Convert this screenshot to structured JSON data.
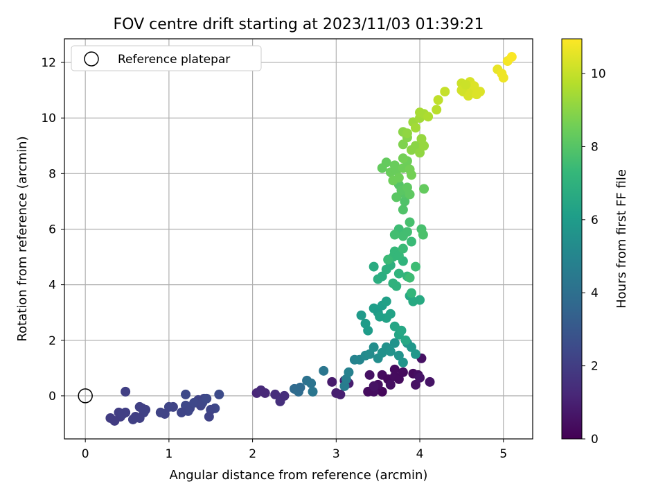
{
  "chart_data": {
    "type": "scatter",
    "title": "FOV centre drift starting at 2023/11/03 01:39:21",
    "xlabel": "Angular distance from reference (arcmin)",
    "ylabel": "Rotation from reference (arcmin)",
    "xlim": [
      -0.25,
      5.35
    ],
    "ylim": [
      -1.55,
      12.85
    ],
    "xticks": [
      0,
      1,
      2,
      3,
      4,
      5
    ],
    "yticks": [
      0,
      2,
      4,
      6,
      8,
      10,
      12
    ],
    "grid": true,
    "legend": {
      "placement": "top-left",
      "entries": [
        "Reference platepar"
      ]
    },
    "reference_point": {
      "x": 0,
      "y": 0
    },
    "colorbar": {
      "label": "Hours from first FF file",
      "colormap": "viridis",
      "range": [
        0,
        10.95
      ],
      "ticks": [
        0,
        2,
        4,
        6,
        8,
        10
      ]
    },
    "colors": {
      "viridis": [
        "#440154",
        "#482878",
        "#3e4989",
        "#31688e",
        "#26828e",
        "#1f9e89",
        "#35b779",
        "#6ece58",
        "#b5de2b",
        "#fde725"
      ]
    },
    "points": [
      [
        3.55,
        0.15,
        0.2
      ],
      [
        3.55,
        0.75,
        0.3
      ],
      [
        3.62,
        0.6,
        0.25
      ],
      [
        3.7,
        0.7,
        0.35
      ],
      [
        3.75,
        0.6,
        0.3
      ],
      [
        3.7,
        0.95,
        0.3
      ],
      [
        3.8,
        0.85,
        0.3
      ],
      [
        3.45,
        0.15,
        0.4
      ],
      [
        3.5,
        0.4,
        0.4
      ],
      [
        3.38,
        0.15,
        0.35
      ],
      [
        3.4,
        0.75,
        0.5
      ],
      [
        3.92,
        0.8,
        0.3
      ],
      [
        3.98,
        0.75,
        0.45
      ],
      [
        4.02,
        1.35,
        0.5
      ],
      [
        4.12,
        0.5,
        0.6
      ],
      [
        3.95,
        0.4,
        0.5
      ],
      [
        4.0,
        0.65,
        0.6
      ],
      [
        3.65,
        0.4,
        0.45
      ],
      [
        3.45,
        0.35,
        0.55
      ],
      [
        2.95,
        0.5,
        0.8
      ],
      [
        3.0,
        0.1,
        0.9
      ],
      [
        3.1,
        0.55,
        0.95
      ],
      [
        3.15,
        0.45,
        0.9
      ],
      [
        3.05,
        0.05,
        0.95
      ],
      [
        2.05,
        0.1,
        1.2
      ],
      [
        2.1,
        0.2,
        1.3
      ],
      [
        2.15,
        0.1,
        1.25
      ],
      [
        2.27,
        0.05,
        1.4
      ],
      [
        2.33,
        -0.2,
        1.5
      ],
      [
        2.38,
        0.0,
        1.45
      ],
      [
        1.6,
        0.05,
        2.5
      ],
      [
        1.55,
        -0.45,
        2.4
      ],
      [
        1.5,
        -0.5,
        2.3
      ],
      [
        1.48,
        -0.75,
        2.2
      ],
      [
        1.42,
        -0.1,
        2.3
      ],
      [
        1.38,
        -0.35,
        2.25
      ],
      [
        1.35,
        -0.15,
        2.2
      ],
      [
        1.25,
        -0.45,
        2.3
      ],
      [
        1.2,
        -0.35,
        2.4
      ],
      [
        1.23,
        -0.55,
        2.35
      ],
      [
        1.15,
        -0.6,
        2.3
      ],
      [
        1.05,
        -0.4,
        2.25
      ],
      [
        1.0,
        -0.4,
        2.3
      ],
      [
        0.95,
        -0.65,
        2.2
      ],
      [
        0.9,
        -0.6,
        2.25
      ],
      [
        0.72,
        -0.5,
        2.1
      ],
      [
        0.68,
        -0.45,
        2.15
      ],
      [
        0.65,
        -0.4,
        2.1
      ],
      [
        0.6,
        -0.75,
        2.05
      ],
      [
        0.57,
        -0.85,
        2.1
      ],
      [
        0.7,
        -0.6,
        2.15
      ],
      [
        0.65,
        -0.8,
        2.1
      ],
      [
        0.48,
        -0.6,
        2.05
      ],
      [
        0.42,
        -0.75,
        2.0
      ],
      [
        0.4,
        -0.6,
        2.0
      ],
      [
        0.35,
        -0.9,
        1.95
      ],
      [
        0.3,
        -0.8,
        1.95
      ],
      [
        0.45,
        -0.65,
        2.05
      ],
      [
        0.48,
        0.15,
        2.05
      ],
      [
        1.2,
        0.05,
        2.45
      ],
      [
        1.3,
        -0.25,
        2.4
      ],
      [
        1.4,
        -0.25,
        2.35
      ],
      [
        1.45,
        -0.1,
        2.45
      ],
      [
        2.5,
        0.25,
        3.8
      ],
      [
        2.55,
        0.15,
        3.9
      ],
      [
        2.57,
        0.3,
        3.8
      ],
      [
        2.65,
        0.55,
        4.1
      ],
      [
        2.7,
        0.45,
        4.2
      ],
      [
        2.72,
        0.15,
        4.3
      ],
      [
        2.85,
        0.9,
        4.3
      ],
      [
        3.1,
        0.35,
        4.6
      ],
      [
        3.12,
        0.6,
        4.7
      ],
      [
        3.15,
        0.85,
        4.8
      ],
      [
        3.22,
        1.3,
        4.9
      ],
      [
        3.28,
        1.3,
        5.0
      ],
      [
        3.35,
        1.45,
        5.2
      ],
      [
        3.4,
        1.5,
        5.3
      ],
      [
        3.45,
        1.75,
        5.4
      ],
      [
        3.5,
        1.35,
        5.4
      ],
      [
        3.55,
        1.55,
        5.5
      ],
      [
        3.6,
        1.75,
        5.5
      ],
      [
        3.65,
        1.6,
        5.6
      ],
      [
        3.7,
        1.9,
        5.6
      ],
      [
        3.75,
        1.45,
        5.6
      ],
      [
        3.8,
        1.2,
        5.7
      ],
      [
        3.85,
        1.9,
        5.7
      ],
      [
        3.9,
        1.75,
        5.8
      ],
      [
        3.95,
        1.5,
        5.8
      ],
      [
        3.3,
        2.9,
        5.9
      ],
      [
        3.35,
        2.6,
        6.0
      ],
      [
        3.38,
        2.35,
        6.0
      ],
      [
        3.45,
        3.15,
        6.1
      ],
      [
        3.5,
        3.0,
        6.0
      ],
      [
        3.55,
        3.25,
        6.1
      ],
      [
        3.6,
        3.4,
        6.2
      ],
      [
        3.6,
        2.8,
        6.3
      ],
      [
        3.65,
        2.95,
        6.3
      ],
      [
        3.7,
        2.5,
        6.4
      ],
      [
        3.75,
        2.2,
        6.4
      ],
      [
        3.78,
        2.35,
        6.5
      ],
      [
        3.83,
        2.0,
        6.5
      ],
      [
        3.52,
        2.85,
        6.2
      ],
      [
        3.88,
        3.6,
        6.5
      ],
      [
        3.92,
        3.4,
        6.6
      ],
      [
        4.0,
        3.45,
        6.6
      ],
      [
        3.45,
        4.65,
        6.7
      ],
      [
        3.5,
        4.2,
        6.8
      ],
      [
        3.55,
        4.3,
        6.8
      ],
      [
        3.6,
        4.55,
        6.9
      ],
      [
        3.65,
        4.7,
        6.9
      ],
      [
        3.68,
        4.05,
        7.0
      ],
      [
        3.72,
        3.95,
        7.0
      ],
      [
        3.75,
        4.4,
        7.1
      ],
      [
        3.8,
        4.85,
        7.1
      ],
      [
        3.85,
        4.3,
        7.2
      ],
      [
        3.9,
        3.7,
        7.2
      ],
      [
        3.68,
        5.0,
        7.3
      ],
      [
        3.7,
        5.2,
        7.3
      ],
      [
        3.75,
        5.05,
        7.3
      ],
      [
        3.8,
        5.3,
        7.4
      ],
      [
        3.9,
        5.55,
        7.4
      ],
      [
        3.95,
        4.65,
        7.5
      ],
      [
        3.88,
        4.25,
        7.5
      ],
      [
        3.62,
        4.9,
        7.4
      ],
      [
        3.75,
        6.0,
        7.5
      ],
      [
        3.8,
        5.75,
        7.6
      ],
      [
        3.85,
        5.9,
        7.6
      ],
      [
        3.88,
        6.25,
        7.7
      ],
      [
        4.02,
        6.0,
        7.7
      ],
      [
        4.04,
        5.8,
        7.8
      ],
      [
        3.7,
        5.8,
        7.6
      ],
      [
        3.8,
        6.7,
        7.9
      ],
      [
        3.82,
        7.0,
        7.9
      ],
      [
        3.8,
        7.3,
        8.0
      ],
      [
        3.75,
        7.6,
        8.0
      ],
      [
        3.72,
        7.15,
        8.1
      ],
      [
        3.78,
        7.4,
        8.1
      ],
      [
        3.85,
        7.5,
        8.2
      ],
      [
        3.88,
        7.25,
        8.2
      ],
      [
        4.05,
        7.45,
        8.3
      ],
      [
        3.55,
        8.2,
        8.3
      ],
      [
        3.6,
        8.4,
        8.3
      ],
      [
        3.65,
        8.05,
        8.4
      ],
      [
        3.7,
        8.3,
        8.4
      ],
      [
        3.72,
        8.1,
        8.4
      ],
      [
        3.75,
        7.85,
        8.5
      ],
      [
        3.8,
        8.2,
        8.5
      ],
      [
        3.85,
        8.45,
        8.5
      ],
      [
        3.88,
        8.15,
        8.6
      ],
      [
        3.9,
        7.95,
        8.6
      ],
      [
        3.8,
        8.55,
        8.6
      ],
      [
        3.68,
        7.75,
        8.5
      ],
      [
        3.8,
        9.05,
        8.8
      ],
      [
        3.85,
        9.3,
        8.9
      ],
      [
        3.9,
        8.85,
        9.0
      ],
      [
        3.95,
        9.0,
        9.0
      ],
      [
        4.0,
        8.75,
        9.1
      ],
      [
        4.02,
        9.25,
        9.2
      ],
      [
        4.05,
        9.0,
        9.2
      ],
      [
        3.8,
        9.5,
        9.0
      ],
      [
        3.85,
        9.45,
        9.1
      ],
      [
        3.92,
        9.85,
        9.3
      ],
      [
        3.95,
        9.65,
        9.4
      ],
      [
        4.0,
        10.0,
        9.4
      ],
      [
        4.05,
        10.15,
        9.5
      ],
      [
        4.1,
        10.05,
        9.6
      ],
      [
        4.0,
        10.2,
        9.5
      ],
      [
        4.2,
        10.3,
        9.8
      ],
      [
        4.22,
        10.65,
        9.9
      ],
      [
        4.3,
        10.95,
        10.0
      ],
      [
        4.5,
        11.25,
        10.1
      ],
      [
        4.52,
        10.95,
        10.2
      ],
      [
        4.55,
        11.05,
        10.2
      ],
      [
        4.58,
        10.8,
        10.3
      ],
      [
        4.6,
        11.3,
        10.3
      ],
      [
        4.62,
        11.05,
        10.3
      ],
      [
        4.65,
        11.15,
        10.4
      ],
      [
        4.68,
        10.85,
        10.4
      ],
      [
        4.72,
        10.95,
        10.4
      ],
      [
        4.5,
        11.0,
        10.2
      ],
      [
        4.55,
        11.2,
        10.1
      ],
      [
        4.93,
        11.75,
        10.6
      ],
      [
        4.98,
        11.6,
        10.7
      ],
      [
        5.0,
        11.45,
        10.7
      ],
      [
        5.05,
        12.05,
        10.8
      ],
      [
        5.1,
        12.2,
        10.9
      ]
    ]
  }
}
